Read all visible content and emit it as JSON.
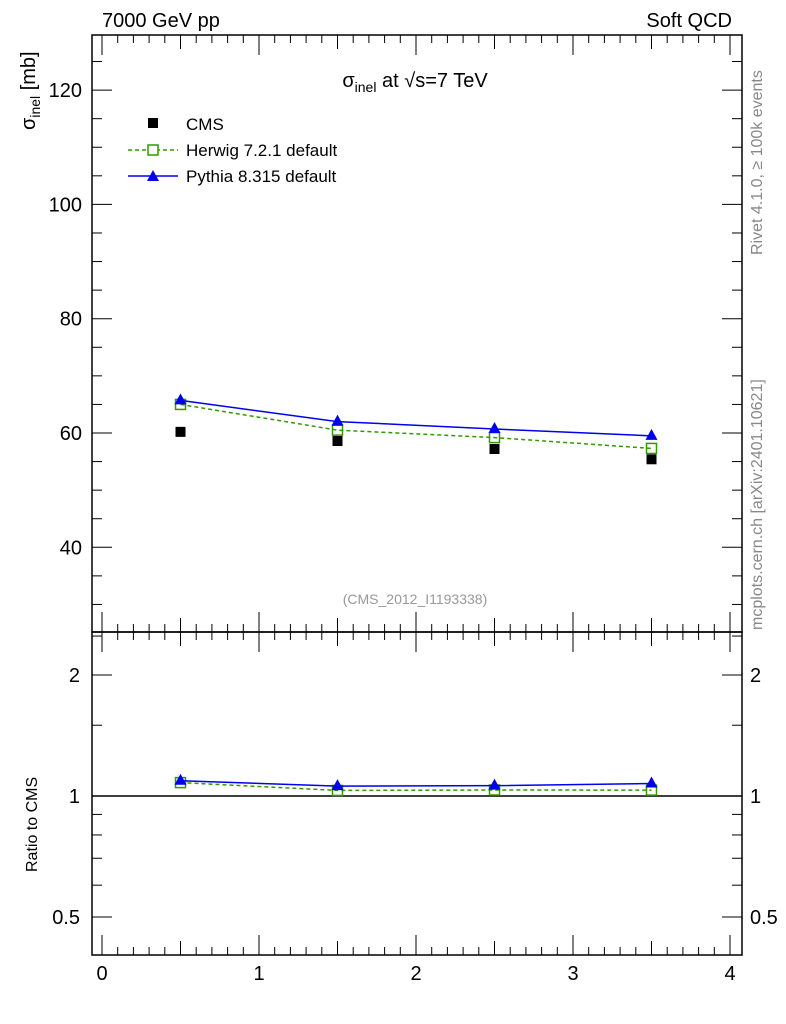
{
  "header": {
    "left": "7000 GeV pp",
    "right": "Soft QCD"
  },
  "side_labels": {
    "rivet": "Rivet 4.1.0, ≥ 100k events",
    "mcplots": "mcplots.cern.ch [arXiv:2401.10621]"
  },
  "chart_data": {
    "type": "scatter",
    "title": {
      "main": "σ",
      "sub": "inel",
      "rest": " at √s=7 TeV"
    },
    "ylabel": {
      "main": "σ",
      "sub": "inel",
      "rest": " [mb]"
    },
    "ratio_ylabel": "Ratio to CMS",
    "watermark": "(CMS_2012_I1193338)",
    "x": [
      0.5,
      1.5,
      2.5,
      3.5
    ],
    "xlim": [
      0,
      4
    ],
    "ylim": [
      25,
      130
    ],
    "ratio_ylim": [
      0.4,
      2.56
    ],
    "ratio_scale": "log",
    "xticks": [
      "0",
      "1",
      "2",
      "3",
      "4"
    ],
    "yticks": [
      "40",
      "60",
      "80",
      "100",
      "120"
    ],
    "ratio_yticks": [
      "0.5",
      "1",
      "2"
    ],
    "legend_position": "top-left",
    "series": [
      {
        "name": "CMS",
        "values": [
          60.2,
          58.6,
          57.2,
          55.4
        ],
        "color": "#000000",
        "marker": "filled-square"
      },
      {
        "name": "Herwig 7.2.1 default",
        "values": [
          65.0,
          60.5,
          59.2,
          57.3
        ],
        "color": "#339900",
        "marker": "open-square",
        "line": "dashed"
      },
      {
        "name": "Pythia 8.315 default",
        "values": [
          65.7,
          62.0,
          60.7,
          59.5
        ],
        "color": "#0000ee",
        "marker": "triangle",
        "line": "solid"
      }
    ]
  }
}
